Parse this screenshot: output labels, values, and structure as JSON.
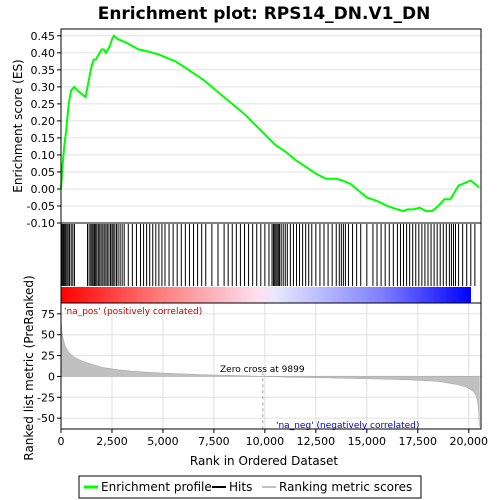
{
  "title": "Enrichment plot: RPS14_DN.V1_DN",
  "chart_data": [
    {
      "type": "line",
      "name": "enrichment-score-panel",
      "ylabel": "Enrichment score (ES)",
      "ylim": [
        -0.1,
        0.47
      ],
      "yticks": [
        -0.1,
        -0.05,
        0.0,
        0.05,
        0.1,
        0.15,
        0.2,
        0.25,
        0.3,
        0.35,
        0.4,
        0.45
      ],
      "ytick_labels": [
        "-0.10",
        "-0.05",
        "0.00",
        "0.05",
        "0.10",
        "0.15",
        "0.20",
        "0.25",
        "0.30",
        "0.35",
        "0.40",
        "0.45"
      ],
      "xlim": [
        0,
        20600
      ],
      "grid": true,
      "series": [
        {
          "name": "Enrichment profile",
          "color": "#00ff00",
          "x": [
            0,
            80,
            150,
            250,
            330,
            400,
            500,
            650,
            800,
            1000,
            1200,
            1300,
            1400,
            1500,
            1600,
            1700,
            1800,
            1900,
            2000,
            2100,
            2200,
            2300,
            2400,
            2500,
            2600,
            2700,
            2800,
            3000,
            3200,
            3500,
            3800,
            4200,
            4500,
            4800,
            5200,
            5600,
            6000,
            6500,
            7000,
            7500,
            8000,
            8500,
            9000,
            9500,
            10000,
            10500,
            11000,
            11500,
            12000,
            12500,
            13000,
            13500,
            13800,
            14200,
            14600,
            15000,
            15500,
            16000,
            16500,
            16800,
            17000,
            17300,
            17600,
            17900,
            18200,
            18500,
            18800,
            19100,
            19300,
            19500,
            19700,
            19900,
            20100,
            20300,
            20500
          ],
          "y": [
            0.0,
            0.07,
            0.12,
            0.17,
            0.22,
            0.26,
            0.29,
            0.3,
            0.29,
            0.28,
            0.27,
            0.3,
            0.33,
            0.36,
            0.38,
            0.38,
            0.39,
            0.4,
            0.41,
            0.41,
            0.4,
            0.41,
            0.42,
            0.44,
            0.45,
            0.445,
            0.44,
            0.435,
            0.43,
            0.42,
            0.41,
            0.405,
            0.4,
            0.395,
            0.385,
            0.375,
            0.36,
            0.34,
            0.32,
            0.295,
            0.27,
            0.245,
            0.22,
            0.19,
            0.16,
            0.13,
            0.11,
            0.085,
            0.065,
            0.045,
            0.03,
            0.03,
            0.025,
            0.015,
            -0.005,
            -0.025,
            -0.035,
            -0.05,
            -0.06,
            -0.065,
            -0.06,
            -0.06,
            -0.055,
            -0.065,
            -0.065,
            -0.05,
            -0.03,
            -0.03,
            -0.01,
            0.01,
            0.015,
            0.02,
            0.025,
            0.015,
            0.005
          ]
        }
      ]
    },
    {
      "type": "hits",
      "name": "hits-panel",
      "hit_positions": [
        40,
        90,
        130,
        180,
        230,
        290,
        350,
        420,
        500,
        580,
        660,
        1300,
        1380,
        1460,
        1520,
        1580,
        1640,
        1700,
        1760,
        1830,
        1900,
        1970,
        2050,
        2120,
        2200,
        2270,
        2350,
        2430,
        2500,
        2560,
        2640,
        2720,
        2800,
        2900,
        3000,
        3100,
        3300,
        3500,
        3700,
        3900,
        4050,
        4200,
        4350,
        4500,
        4650,
        4800,
        4950,
        5100,
        5300,
        5500,
        5700,
        5900,
        6100,
        6300,
        6500,
        6700,
        6900,
        7100,
        7400,
        7700,
        8000,
        8200,
        8400,
        8600,
        8800,
        9000,
        9200,
        9400,
        9600,
        9800,
        10000,
        10200,
        10350,
        10420,
        10480,
        10540,
        10600,
        10660,
        10720,
        10800,
        10900,
        11000,
        11100,
        11250,
        11400,
        11550,
        11700,
        11850,
        12000,
        12150,
        12300,
        12500,
        12700,
        12900,
        13100,
        13300,
        13500,
        13650,
        13750,
        13850,
        13950,
        14100,
        14300,
        14500,
        14700,
        15000,
        15300,
        15500,
        15700,
        15900,
        16100,
        16300,
        16500,
        16650,
        16800,
        16950,
        17100,
        17250,
        17400,
        17550,
        17700,
        17850,
        18000,
        18150,
        18300,
        18450,
        18600,
        18750,
        18900,
        19050,
        19150,
        19250,
        19350,
        19500,
        19700,
        19900,
        20100,
        20300
      ]
    },
    {
      "type": "area",
      "name": "ranked-metric-panel",
      "ylabel": "Ranked list metric (PreRanked)",
      "xlabel": "Rank in Ordered Dataset",
      "ylim": [
        -63,
        88
      ],
      "yticks": [
        -50,
        -25,
        0,
        25,
        50,
        75
      ],
      "ytick_labels": [
        "-50",
        "-25",
        "0",
        "25",
        "50",
        "75"
      ],
      "xlim": [
        0,
        20600
      ],
      "xticks": [
        0,
        2500,
        5000,
        7500,
        10000,
        12500,
        15000,
        17500,
        20000
      ],
      "xtick_labels": [
        "0",
        "2,500",
        "5,000",
        "7,500",
        "10,000",
        "12,500",
        "15,000",
        "17,500",
        "20,000"
      ],
      "series": [
        {
          "name": "Ranking metric scores",
          "color": "#c0c0c0",
          "x": [
            0,
            20,
            60,
            120,
            200,
            300,
            450,
            650,
            900,
            1200,
            1600,
            2000,
            2500,
            3000,
            3600,
            4300,
            5000,
            6000,
            7000,
            8000,
            9000,
            9899,
            11000,
            12000,
            13000,
            14000,
            15000,
            16000,
            17000,
            17800,
            18500,
            19000,
            19500,
            19900,
            20100,
            20250,
            20350,
            20420,
            20460,
            20490,
            20510
          ],
          "y": [
            88,
            62,
            52,
            44,
            37,
            32,
            27,
            23,
            20,
            17,
            14,
            11,
            9,
            7.5,
            6,
            5,
            4,
            3,
            2,
            1.5,
            0.8,
            0,
            -0.8,
            -1.3,
            -1.8,
            -2.3,
            -2.8,
            -3.3,
            -4,
            -5,
            -6,
            -8,
            -10,
            -13,
            -16,
            -19,
            -23,
            -28,
            -35,
            -45,
            -60
          ]
        }
      ],
      "annotations": {
        "positive": "'na_pos' (positively correlated)",
        "zero_cross": "Zero cross at 9899",
        "negative": "'na_neg' (negatively correlated)"
      },
      "zero_cross_rank": 9899
    }
  ],
  "legend": {
    "placement": "bottom",
    "items": [
      {
        "label": "Enrichment profile",
        "color": "#00ff00"
      },
      {
        "label": "Hits",
        "color": "#000000"
      },
      {
        "label": "Ranking metric scores",
        "color": "#c0c0c0"
      }
    ]
  },
  "colors": {
    "positive_annot": "#cc0000",
    "negative_annot": "#0000cc",
    "grid": "#e0e0e0"
  }
}
